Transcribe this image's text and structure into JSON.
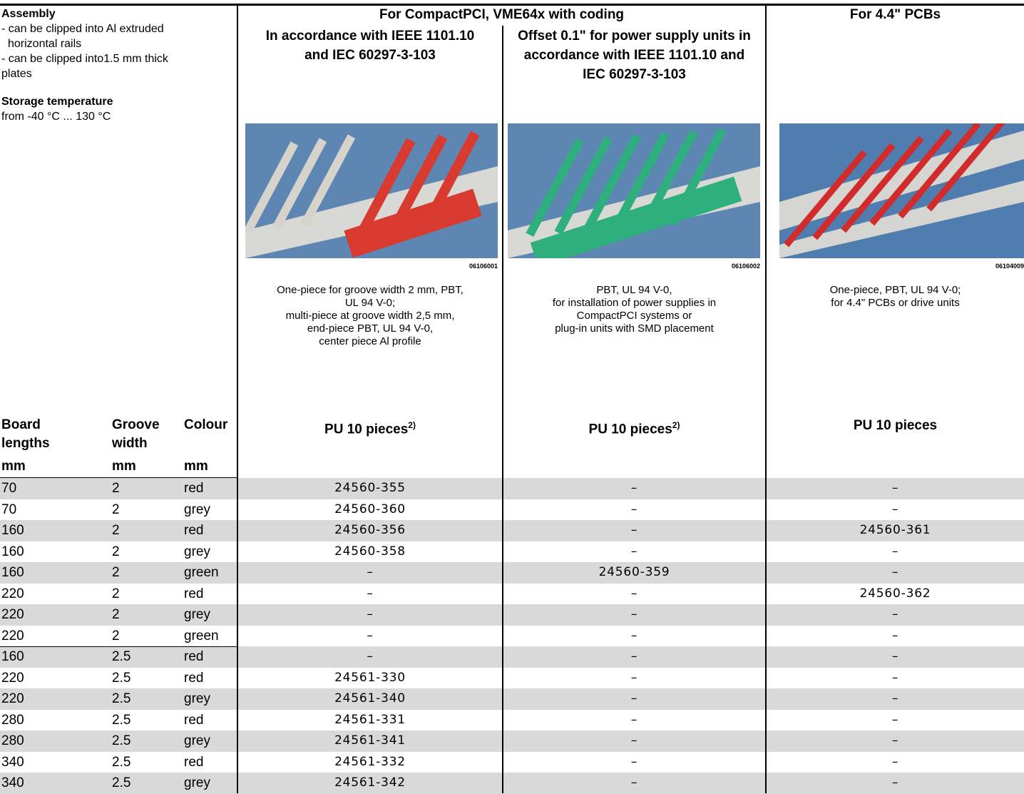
{
  "notes": {
    "assembly_title": "Assembly",
    "assembly_lines": [
      "- can be clipped into Al extruded",
      "horizontal rails",
      "- can be clipped into1.5 mm thick",
      "plates"
    ],
    "storage_title": "Storage temperature",
    "storage_text": "from -40 °C ... 130 °C"
  },
  "groups": [
    "For CompactPCI, VME64x with coding",
    "For 4.4\" PCBs"
  ],
  "columns": [
    {
      "heading_lines": [
        "In accordance with IEEE 1101.10",
        "and IEC 60297-3-103"
      ],
      "image_code": "06106001",
      "description_lines": [
        "One-piece for groove width 2 mm, PBT,",
        "UL 94 V-0;",
        "multi-piece at groove width 2,5 mm,",
        "end-piece PBT, UL 94 V-0,",
        "center piece Al profile"
      ],
      "pu": "PU 10 pieces",
      "footnote": "2)"
    },
    {
      "heading_lines": [
        "Offset 0.1\" for power supply units in",
        "accordance with IEEE 1101.10 and",
        "IEC 60297-3-103"
      ],
      "image_code": "06106002",
      "description_lines": [
        "PBT, UL 94 V-0,",
        "for installation of power supplies in",
        "CompactPCI systems or",
        "plug-in units with SMD placement"
      ],
      "pu": "PU 10 pieces",
      "footnote": "2)"
    },
    {
      "image_code": "06104009",
      "description_lines": [
        "One-piece, PBT, UL 94 V-0;",
        "for 4.4\" PCBs or drive units"
      ],
      "pu": "PU 10 pieces"
    }
  ],
  "table": {
    "headers": [
      [
        "Board",
        "lengths"
      ],
      [
        "Groove",
        "width"
      ],
      [
        "Colour"
      ]
    ],
    "units": [
      "mm",
      "mm",
      "mm"
    ],
    "rows": [
      [
        "70",
        "2",
        "red",
        "24560-355",
        "–",
        "–"
      ],
      [
        "70",
        "2",
        "grey",
        "24560-360",
        "–",
        "–"
      ],
      [
        "160",
        "2",
        "red",
        "24560-356",
        "–",
        "24560-361"
      ],
      [
        "160",
        "2",
        "grey",
        "24560-358",
        "–",
        "–"
      ],
      [
        "160",
        "2",
        "green",
        "–",
        "24560-359",
        "–"
      ],
      [
        "220",
        "2",
        "red",
        "–",
        "–",
        "24560-362"
      ],
      [
        "220",
        "2",
        "grey",
        "–",
        "–",
        "–"
      ],
      [
        "220",
        "2",
        "green",
        "–",
        "–",
        "–"
      ],
      [
        "160",
        "2.5",
        "red",
        "–",
        "–",
        "–"
      ],
      [
        "220",
        "2.5",
        "red",
        "24561-330",
        "–",
        "–"
      ],
      [
        "220",
        "2.5",
        "grey",
        "24561-340",
        "–",
        "–"
      ],
      [
        "280",
        "2.5",
        "red",
        "24561-331",
        "–",
        "–"
      ],
      [
        "280",
        "2.5",
        "grey",
        "24561-341",
        "–",
        "–"
      ],
      [
        "340",
        "2.5",
        "red",
        "24561-332",
        "–",
        "–"
      ],
      [
        "340",
        "2.5",
        "grey",
        "24561-342",
        "–",
        "–"
      ]
    ]
  }
}
